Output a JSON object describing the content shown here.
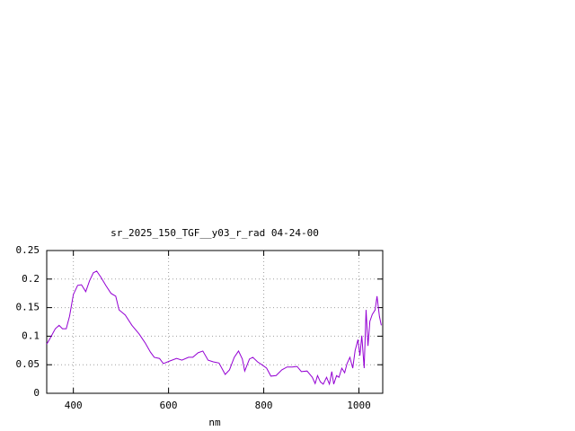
{
  "chart_data": {
    "type": "line",
    "title": "sr_2025_150_TGF__y03_r_rad 04-24-00",
    "x_label": "nm",
    "xlim": [
      344,
      1050
    ],
    "xticks": [
      400,
      600,
      800,
      1000
    ],
    "ylim": [
      0,
      0.25
    ],
    "yticks": [
      0,
      0.05,
      0.1,
      0.15,
      0.2,
      0.25
    ],
    "grid": true,
    "series": [
      {
        "color": "#9400d3",
        "x": [
          344,
          353,
          362,
          370,
          377,
          385,
          392,
          400,
          409,
          417,
          426,
          434,
          442,
          449,
          458,
          468,
          479,
          489,
          496,
          509,
          523,
          538,
          551,
          562,
          570,
          581,
          589,
          604,
          617,
          628,
          642,
          651,
          662,
          672,
          683,
          694,
          706,
          719,
          728,
          738,
          747,
          755,
          760,
          770,
          777,
          787,
          796,
          806,
          815,
          826,
          838,
          849,
          860,
          870,
          879,
          891,
          902,
          908,
          913,
          919,
          925,
          932,
          938,
          943,
          947,
          953,
          958,
          964,
          970,
          975,
          981,
          987,
          992,
          998,
          1002,
          1006,
          1011,
          1015,
          1019,
          1023,
          1028,
          1034,
          1038,
          1043,
          1047
        ],
        "values": [
          0.086,
          0.099,
          0.113,
          0.119,
          0.113,
          0.113,
          0.135,
          0.173,
          0.189,
          0.19,
          0.178,
          0.197,
          0.211,
          0.214,
          0.203,
          0.189,
          0.175,
          0.17,
          0.146,
          0.137,
          0.119,
          0.104,
          0.088,
          0.072,
          0.063,
          0.061,
          0.052,
          0.057,
          0.061,
          0.058,
          0.063,
          0.063,
          0.071,
          0.074,
          0.058,
          0.055,
          0.053,
          0.033,
          0.041,
          0.063,
          0.074,
          0.06,
          0.039,
          0.06,
          0.063,
          0.055,
          0.05,
          0.044,
          0.03,
          0.031,
          0.041,
          0.046,
          0.046,
          0.047,
          0.038,
          0.039,
          0.028,
          0.017,
          0.031,
          0.02,
          0.016,
          0.028,
          0.016,
          0.038,
          0.016,
          0.031,
          0.028,
          0.044,
          0.036,
          0.052,
          0.063,
          0.044,
          0.075,
          0.094,
          0.066,
          0.101,
          0.044,
          0.146,
          0.083,
          0.126,
          0.138,
          0.146,
          0.17,
          0.135,
          0.119
        ]
      }
    ]
  }
}
